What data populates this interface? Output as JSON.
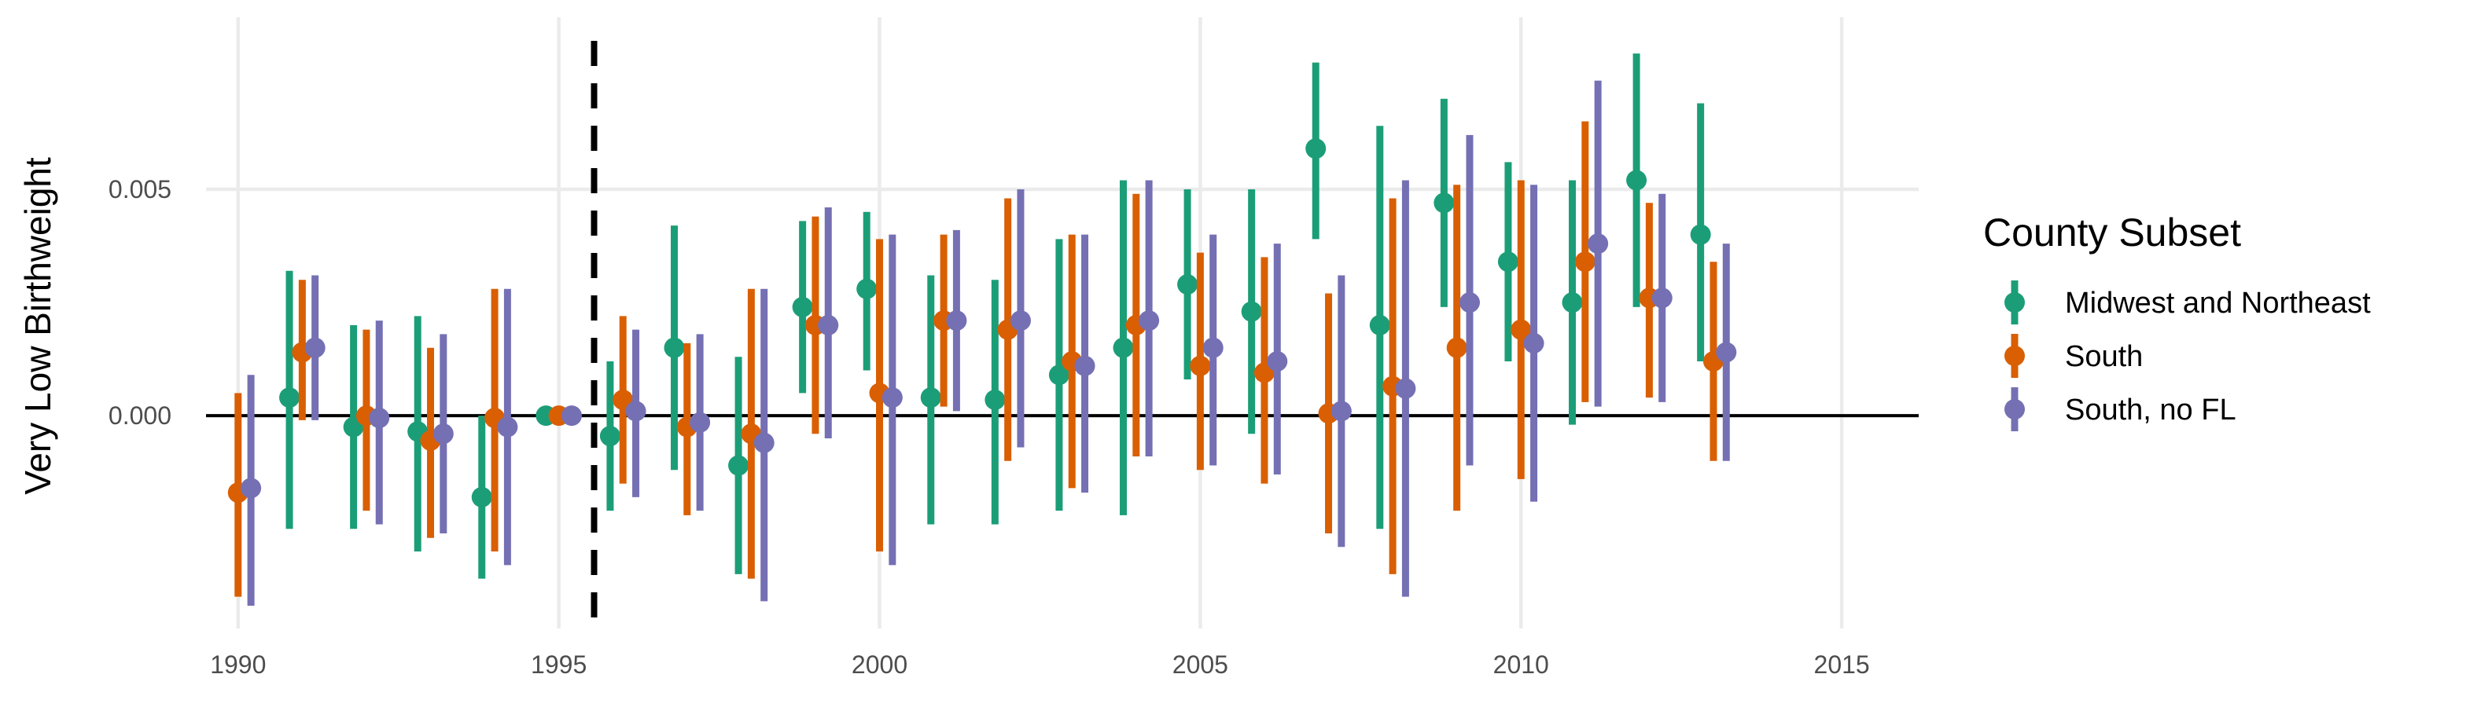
{
  "chart_data": {
    "type": "scatter",
    "subtype": "point-range",
    "title": "",
    "xlabel": "",
    "ylabel": "Very Low Birthweight",
    "xlim": [
      1989.5,
      2016.2
    ],
    "ylim": [
      -0.0047,
      0.0088
    ],
    "xticks": [
      1990,
      1995,
      2000,
      2005,
      2010,
      2015
    ],
    "xtick_labels": [
      "1990",
      "1995",
      "2000",
      "2005",
      "2010",
      "2015"
    ],
    "yticks": [
      0,
      0.005
    ],
    "ytick_labels": [
      "0.000",
      "0.005"
    ],
    "reference_lines": {
      "horizontal_y": 0,
      "vertical_dashed_x": 1995.55
    },
    "grid": true,
    "legend": {
      "title": "County Subset",
      "position": "right"
    },
    "series": [
      {
        "name": "Midwest and Northeast",
        "color": "#1B9E77",
        "offset": -0.2,
        "points": [
          {
            "x": 1991,
            "y": 0.0004,
            "lo": -0.0025,
            "hi": 0.0032
          },
          {
            "x": 1992,
            "y": -0.00025,
            "lo": -0.0025,
            "hi": 0.002
          },
          {
            "x": 1993,
            "y": -0.00035,
            "lo": -0.003,
            "hi": 0.0022
          },
          {
            "x": 1994,
            "y": -0.0018,
            "lo": -0.0036,
            "hi": 0.0
          },
          {
            "x": 1995,
            "y": 0.0,
            "lo": 0.0,
            "hi": 0.0
          },
          {
            "x": 1996,
            "y": -0.00045,
            "lo": -0.0021,
            "hi": 0.0012
          },
          {
            "x": 1997,
            "y": 0.0015,
            "lo": -0.0012,
            "hi": 0.0042
          },
          {
            "x": 1998,
            "y": -0.0011,
            "lo": -0.0035,
            "hi": 0.0013
          },
          {
            "x": 1999,
            "y": 0.0024,
            "lo": 0.0005,
            "hi": 0.0043
          },
          {
            "x": 2000,
            "y": 0.0028,
            "lo": 0.001,
            "hi": 0.0045
          },
          {
            "x": 2001,
            "y": 0.0004,
            "lo": -0.0024,
            "hi": 0.0031
          },
          {
            "x": 2002,
            "y": 0.00035,
            "lo": -0.0024,
            "hi": 0.003
          },
          {
            "x": 2003,
            "y": 0.0009,
            "lo": -0.0021,
            "hi": 0.0039
          },
          {
            "x": 2004,
            "y": 0.0015,
            "lo": -0.0022,
            "hi": 0.0052
          },
          {
            "x": 2005,
            "y": 0.0029,
            "lo": 0.0008,
            "hi": 0.005
          },
          {
            "x": 2006,
            "y": 0.0023,
            "lo": -0.0004,
            "hi": 0.005
          },
          {
            "x": 2007,
            "y": 0.0059,
            "lo": 0.0039,
            "hi": 0.0078
          },
          {
            "x": 2008,
            "y": 0.002,
            "lo": -0.0025,
            "hi": 0.0064
          },
          {
            "x": 2009,
            "y": 0.0047,
            "lo": 0.0024,
            "hi": 0.007
          },
          {
            "x": 2010,
            "y": 0.0034,
            "lo": 0.0012,
            "hi": 0.0056
          },
          {
            "x": 2011,
            "y": 0.0025,
            "lo": -0.0002,
            "hi": 0.0052
          },
          {
            "x": 2012,
            "y": 0.0052,
            "lo": 0.0024,
            "hi": 0.008
          },
          {
            "x": 2013,
            "y": 0.004,
            "lo": 0.0012,
            "hi": 0.0069
          }
        ]
      },
      {
        "name": "South",
        "color": "#D95F02",
        "offset": 0.0,
        "points": [
          {
            "x": 1990,
            "y": -0.0017,
            "lo": -0.004,
            "hi": 0.0005
          },
          {
            "x": 1991,
            "y": 0.0014,
            "lo": -0.0001,
            "hi": 0.003
          },
          {
            "x": 1992,
            "y": 0.0,
            "lo": -0.0021,
            "hi": 0.0019
          },
          {
            "x": 1993,
            "y": -0.00055,
            "lo": -0.0027,
            "hi": 0.0015
          },
          {
            "x": 1994,
            "y": -5e-05,
            "lo": -0.003,
            "hi": 0.0028
          },
          {
            "x": 1995,
            "y": 0.0,
            "lo": 0.0,
            "hi": 0.0
          },
          {
            "x": 1996,
            "y": 0.00035,
            "lo": -0.0015,
            "hi": 0.0022
          },
          {
            "x": 1997,
            "y": -0.00025,
            "lo": -0.0022,
            "hi": 0.0016
          },
          {
            "x": 1998,
            "y": -0.0004,
            "lo": -0.0036,
            "hi": 0.0028
          },
          {
            "x": 1999,
            "y": 0.002,
            "lo": -0.0004,
            "hi": 0.0044
          },
          {
            "x": 2000,
            "y": 0.0005,
            "lo": -0.003,
            "hi": 0.0039
          },
          {
            "x": 2001,
            "y": 0.0021,
            "lo": 0.0002,
            "hi": 0.004
          },
          {
            "x": 2002,
            "y": 0.0019,
            "lo": -0.001,
            "hi": 0.0048
          },
          {
            "x": 2003,
            "y": 0.0012,
            "lo": -0.0016,
            "hi": 0.004
          },
          {
            "x": 2004,
            "y": 0.002,
            "lo": -0.0009,
            "hi": 0.0049
          },
          {
            "x": 2005,
            "y": 0.0011,
            "lo": -0.0012,
            "hi": 0.0036
          },
          {
            "x": 2006,
            "y": 0.00095,
            "lo": -0.0015,
            "hi": 0.0035
          },
          {
            "x": 2007,
            "y": 5e-05,
            "lo": -0.0026,
            "hi": 0.0027
          },
          {
            "x": 2008,
            "y": 0.00065,
            "lo": -0.0035,
            "hi": 0.0048
          },
          {
            "x": 2009,
            "y": 0.0015,
            "lo": -0.0021,
            "hi": 0.0051
          },
          {
            "x": 2010,
            "y": 0.0019,
            "lo": -0.0014,
            "hi": 0.0052
          },
          {
            "x": 2011,
            "y": 0.0034,
            "lo": 0.0003,
            "hi": 0.0065
          },
          {
            "x": 2012,
            "y": 0.0026,
            "lo": 0.0004,
            "hi": 0.0047
          },
          {
            "x": 2013,
            "y": 0.0012,
            "lo": -0.001,
            "hi": 0.0034
          }
        ]
      },
      {
        "name": "South, no FL",
        "color": "#7570B3",
        "offset": 0.2,
        "points": [
          {
            "x": 1990,
            "y": -0.0016,
            "lo": -0.0042,
            "hi": 0.0009
          },
          {
            "x": 1991,
            "y": 0.0015,
            "lo": -0.0001,
            "hi": 0.0031
          },
          {
            "x": 1992,
            "y": -5e-05,
            "lo": -0.0024,
            "hi": 0.0021
          },
          {
            "x": 1993,
            "y": -0.0004,
            "lo": -0.0026,
            "hi": 0.0018
          },
          {
            "x": 1994,
            "y": -0.00025,
            "lo": -0.0033,
            "hi": 0.0028
          },
          {
            "x": 1995,
            "y": 0.0,
            "lo": 0.0,
            "hi": 0.0
          },
          {
            "x": 1996,
            "y": 0.0001,
            "lo": -0.0018,
            "hi": 0.0019
          },
          {
            "x": 1997,
            "y": -0.00015,
            "lo": -0.0021,
            "hi": 0.0018
          },
          {
            "x": 1998,
            "y": -0.0006,
            "lo": -0.0041,
            "hi": 0.0028
          },
          {
            "x": 1999,
            "y": 0.002,
            "lo": -0.0005,
            "hi": 0.0046
          },
          {
            "x": 2000,
            "y": 0.0004,
            "lo": -0.0033,
            "hi": 0.004
          },
          {
            "x": 2001,
            "y": 0.0021,
            "lo": 0.0001,
            "hi": 0.0041
          },
          {
            "x": 2002,
            "y": 0.0021,
            "lo": -0.0007,
            "hi": 0.005
          },
          {
            "x": 2003,
            "y": 0.0011,
            "lo": -0.0017,
            "hi": 0.004
          },
          {
            "x": 2004,
            "y": 0.0021,
            "lo": -0.0009,
            "hi": 0.0052
          },
          {
            "x": 2005,
            "y": 0.0015,
            "lo": -0.0011,
            "hi": 0.004
          },
          {
            "x": 2006,
            "y": 0.0012,
            "lo": -0.0013,
            "hi": 0.0038
          },
          {
            "x": 2007,
            "y": 0.0001,
            "lo": -0.0029,
            "hi": 0.0031
          },
          {
            "x": 2008,
            "y": 0.0006,
            "lo": -0.004,
            "hi": 0.0052
          },
          {
            "x": 2009,
            "y": 0.0025,
            "lo": -0.0011,
            "hi": 0.0062
          },
          {
            "x": 2010,
            "y": 0.0016,
            "lo": -0.0019,
            "hi": 0.0051
          },
          {
            "x": 2011,
            "y": 0.0038,
            "lo": 0.0002,
            "hi": 0.0074
          },
          {
            "x": 2012,
            "y": 0.0026,
            "lo": 0.0003,
            "hi": 0.0049
          },
          {
            "x": 2013,
            "y": 0.0014,
            "lo": -0.001,
            "hi": 0.0038
          }
        ]
      }
    ]
  }
}
